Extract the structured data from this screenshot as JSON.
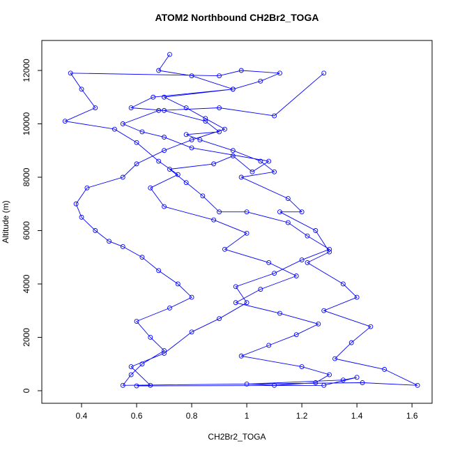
{
  "chart_data": {
    "type": "line",
    "title": "ATOM2 Northbound CH2Br2_TOGA",
    "x_label": "CH2Br2_TOGA",
    "y_label": "Altitude (m)",
    "color": "#0000ff",
    "marker": "circle",
    "x": [
      0.72,
      0.68,
      0.8,
      0.95,
      0.66,
      0.58,
      0.7,
      0.85,
      0.9,
      0.78,
      0.83,
      0.95,
      1.05,
      1.1,
      0.98,
      1.15,
      1.2,
      1.12,
      1.25,
      1.3,
      1.22,
      1.35,
      1.4,
      1.28,
      1.45,
      1.38,
      1.32,
      1.5,
      1.62,
      1.42,
      0.55,
      0.58,
      0.62,
      0.7,
      0.65,
      0.6,
      0.72,
      0.8,
      0.75,
      0.68,
      0.62,
      0.55,
      0.5,
      0.45,
      0.4,
      0.38,
      0.42,
      0.55,
      0.6,
      0.7,
      0.8,
      0.92,
      0.85,
      0.78,
      0.7,
      0.95,
      1.05,
      1.12,
      0.98,
      0.9,
      0.36,
      0.4,
      0.45,
      0.34,
      0.52,
      0.6,
      0.68,
      0.75,
      0.65,
      0.7,
      0.88,
      1.0,
      0.92,
      1.08,
      1.18,
      1.05,
      0.96,
      1.12,
      1.26,
      1.18,
      1.08,
      0.98,
      1.2,
      1.3,
      1.25,
      1.1,
      1.0,
      1.35,
      1.4,
      1.28,
      0.6,
      0.65,
      0.58,
      0.7,
      0.8,
      0.9,
      1.0,
      0.96,
      1.1,
      1.2,
      1.3,
      1.22,
      1.15,
      1.0,
      0.9,
      0.84,
      0.78,
      0.72,
      0.88,
      0.95,
      1.02,
      1.08,
      0.8,
      0.7,
      0.62,
      0.55,
      0.68,
      0.9,
      1.1,
      1.28
    ],
    "values": [
      12600,
      12000,
      11800,
      11300,
      11000,
      10600,
      10500,
      10100,
      9700,
      9600,
      9400,
      9000,
      8600,
      8200,
      8000,
      7200,
      6700,
      6700,
      6000,
      5200,
      4800,
      4000,
      3500,
      3000,
      2400,
      1800,
      1200,
      800,
      200,
      300,
      200,
      600,
      1000,
      1500,
      2000,
      2600,
      3100,
      3500,
      4000,
      4500,
      5000,
      5400,
      5600,
      6000,
      6500,
      7000,
      7600,
      8000,
      8500,
      9000,
      9400,
      9800,
      10200,
      10600,
      11000,
      11300,
      11600,
      11900,
      12000,
      11800,
      11900,
      11300,
      10600,
      10100,
      9800,
      9300,
      8600,
      8100,
      7600,
      6900,
      6400,
      5900,
      5300,
      4800,
      4300,
      3800,
      3300,
      2900,
      2500,
      2100,
      1700,
      1300,
      900,
      600,
      300,
      200,
      250,
      400,
      500,
      200,
      180,
      200,
      900,
      1400,
      2200,
      2700,
      3300,
      3900,
      4400,
      4900,
      5300,
      5800,
      6300,
      6700,
      6700,
      7300,
      7800,
      8300,
      8500,
      8800,
      8200,
      8600,
      9100,
      9500,
      9700,
      10000,
      10500,
      10600,
      10300,
      11900
    ],
    "xlim": [
      0.2557,
      1.673
    ],
    "ylim": [
      -471,
      13124
    ],
    "xticks": [
      0.4,
      0.6,
      0.8,
      1.0,
      1.2,
      1.4,
      1.6
    ],
    "yticks": [
      0,
      2000,
      4000,
      6000,
      8000,
      10000,
      12000
    ]
  }
}
